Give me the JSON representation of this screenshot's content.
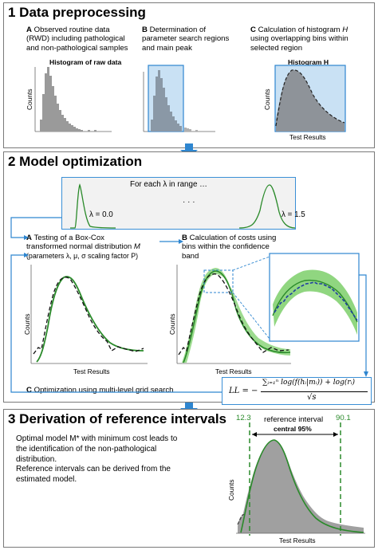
{
  "sections": {
    "s1": {
      "title": "1 Data preprocessing"
    },
    "s2": {
      "title": "2 Model optimization"
    },
    "s3": {
      "title": "3 Derivation of reference intervals"
    }
  },
  "step_a": {
    "letter": "A",
    "text_l1": "Observed routine data",
    "text_l2": "(RWD) including pathological",
    "text_l3": "and non-pathological samples",
    "chart_title": "Histogram of raw data"
  },
  "step_b": {
    "letter": "B",
    "text_l1": "Determination of",
    "text_l2": "parameter search regions",
    "text_l3": "and main peak"
  },
  "step_c": {
    "letter": "C",
    "text_l1": "Calculation of histogram",
    "text_l1_var": "H",
    "text_l2": "using overlapping bins within",
    "text_l3": "selected region",
    "chart_title": "Histogram H"
  },
  "common": {
    "counts": "Counts",
    "test_results": "Test Results"
  },
  "lambda_box": {
    "caption": "For each λ in range …",
    "left": "λ = 0.0",
    "right": "λ = 1.5",
    "dots": "· · ·"
  },
  "opt_a": {
    "letter": "A",
    "text_l1": "Testing of a Box-Cox",
    "text_l2": "transformed normal distribution",
    "text_l2_var": "M",
    "text_l3": "(parameters λ, μ, σ scaling factor P)"
  },
  "opt_b": {
    "letter": "B",
    "text_l1": "Calculation of costs using",
    "text_l2": "bins within the confidence",
    "text_l3": "band"
  },
  "opt_c": {
    "letter": "C",
    "text": "Optimization using multi-level grid search"
  },
  "formula": {
    "lhs": "LL = −",
    "numerator": "∑ᵢ₌₁ⁿ log(f(hᵢ|mᵢ)) + log(rᵢ)",
    "denominator": "√s"
  },
  "derivation": {
    "line1": "Optimal model M* with minimum cost leads to",
    "line2": "the identification of the non-pathological",
    "line3": "distribution.",
    "line4": "Reference intervals can be derived from the",
    "line5": "estimated model.",
    "lower_limit": "12.3",
    "upper_limit": "90.1",
    "interval_label": "reference interval",
    "central_label": "central 95%"
  },
  "colors": {
    "accent_blue": "#2e86d0",
    "green": "#2a8a2a",
    "band_green": "#7ccf6a",
    "gray": "#9a9a9a",
    "dark_blue": "#1f3fa0"
  }
}
